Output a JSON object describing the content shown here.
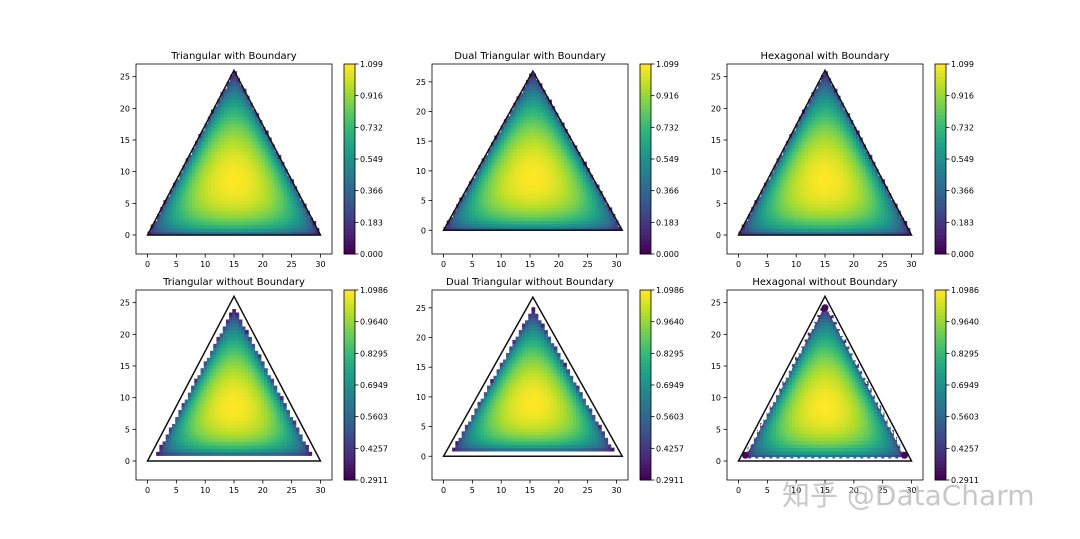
{
  "figure": {
    "watermark": "知乎 @DataCharm"
  },
  "chart_data": [
    {
      "type": "heatmap",
      "title": "Triangular with Boundary",
      "xticks": [
        0,
        5,
        10,
        15,
        20,
        25,
        30
      ],
      "yticks": [
        0,
        5,
        10,
        15,
        20,
        25
      ],
      "xlim": [
        -2,
        32
      ],
      "ylim": [
        -3,
        27
      ],
      "boundary": [
        [
          0,
          0
        ],
        [
          30,
          0
        ],
        [
          15,
          26
        ]
      ],
      "domain": [
        [
          0,
          0
        ],
        [
          30,
          0
        ],
        [
          15,
          26
        ]
      ],
      "colorbar": {
        "ticks": [
          "0.000",
          "0.183",
          "0.366",
          "0.549",
          "0.732",
          "0.916",
          "1.099"
        ],
        "vmin": 0.0,
        "vmax": 1.099
      },
      "vmin_data": 0.0,
      "dashed_boundary": false
    },
    {
      "type": "heatmap",
      "title": "Dual Triangular with Boundary",
      "xticks": [
        0,
        5,
        10,
        15,
        20,
        25,
        30
      ],
      "yticks": [
        0,
        5,
        10,
        15,
        20,
        25
      ],
      "xlim": [
        -2,
        32
      ],
      "ylim": [
        -4,
        28
      ],
      "boundary": [
        [
          0,
          0
        ],
        [
          31,
          0
        ],
        [
          15.5,
          26.8
        ]
      ],
      "domain": [
        [
          0,
          0
        ],
        [
          31,
          0
        ],
        [
          15.5,
          26.8
        ]
      ],
      "colorbar": {
        "ticks": [
          "0.000",
          "0.183",
          "0.366",
          "0.549",
          "0.732",
          "0.916",
          "1.099"
        ],
        "vmin": 0.0,
        "vmax": 1.099
      },
      "vmin_data": 0.0,
      "dashed_boundary": false
    },
    {
      "type": "heatmap",
      "title": "Hexagonal with Boundary",
      "xticks": [
        0,
        5,
        10,
        15,
        20,
        25,
        30
      ],
      "yticks": [
        0,
        5,
        10,
        15,
        20,
        25
      ],
      "xlim": [
        -2,
        32
      ],
      "ylim": [
        -3,
        27
      ],
      "boundary": [
        [
          0,
          0
        ],
        [
          30,
          0
        ],
        [
          15,
          26
        ]
      ],
      "domain": [
        [
          0,
          0
        ],
        [
          30,
          0
        ],
        [
          15,
          26
        ]
      ],
      "colorbar": {
        "ticks": [
          "0.000",
          "0.183",
          "0.366",
          "0.549",
          "0.732",
          "0.916",
          "1.099"
        ],
        "vmin": 0.0,
        "vmax": 1.099
      },
      "vmin_data": 0.0,
      "dashed_boundary": false
    },
    {
      "type": "heatmap",
      "title": "Triangular without Boundary",
      "xticks": [
        0,
        5,
        10,
        15,
        20,
        25,
        30
      ],
      "yticks": [
        0,
        5,
        10,
        15,
        20,
        25
      ],
      "xlim": [
        -2,
        32
      ],
      "ylim": [
        -3,
        27
      ],
      "boundary": [
        [
          0,
          0
        ],
        [
          30,
          0
        ],
        [
          15,
          26
        ]
      ],
      "domain": [
        [
          1.5,
          0.9
        ],
        [
          28.5,
          0.9
        ],
        [
          15,
          24.2
        ]
      ],
      "colorbar": {
        "ticks": [
          "0.2911",
          "0.4257",
          "0.5603",
          "0.6949",
          "0.8295",
          "0.9640",
          "1.0986"
        ],
        "vmin": 0.2911,
        "vmax": 1.0986
      },
      "vmin_data": 0.2911,
      "dashed_boundary": false
    },
    {
      "type": "heatmap",
      "title": "Dual Triangular without Boundary",
      "xticks": [
        0,
        5,
        10,
        15,
        20,
        25,
        30
      ],
      "yticks": [
        0,
        5,
        10,
        15,
        20,
        25
      ],
      "xlim": [
        -2,
        32
      ],
      "ylim": [
        -4,
        28
      ],
      "boundary": [
        [
          0,
          0
        ],
        [
          31,
          0
        ],
        [
          15.5,
          26.8
        ]
      ],
      "domain": [
        [
          1.5,
          0.9
        ],
        [
          29.5,
          0.9
        ],
        [
          15.5,
          25.0
        ]
      ],
      "colorbar": {
        "ticks": [
          "0.2911",
          "0.4257",
          "0.5603",
          "0.6949",
          "0.8295",
          "0.9640",
          "1.0986"
        ],
        "vmin": 0.2911,
        "vmax": 1.0986
      },
      "vmin_data": 0.2911,
      "dashed_boundary": false
    },
    {
      "type": "heatmap",
      "title": "Hexagonal without Boundary",
      "xticks": [
        0,
        5,
        10,
        15,
        20,
        25,
        30
      ],
      "yticks": [
        0,
        5,
        10,
        15,
        20,
        25
      ],
      "xlim": [
        -2,
        32
      ],
      "ylim": [
        -3,
        27
      ],
      "boundary": [
        [
          0,
          0
        ],
        [
          30,
          0
        ],
        [
          15,
          26
        ]
      ],
      "domain": [
        [
          1.0,
          0.5
        ],
        [
          29.0,
          0.5
        ],
        [
          15,
          24.8
        ]
      ],
      "colorbar": {
        "ticks": [
          "0.2911",
          "0.4257",
          "0.5603",
          "0.6949",
          "0.8295",
          "0.9640",
          "1.0986"
        ],
        "vmin": 0.2911,
        "vmax": 1.0986
      },
      "vmin_data": 0.2911,
      "dashed_boundary": true
    }
  ]
}
